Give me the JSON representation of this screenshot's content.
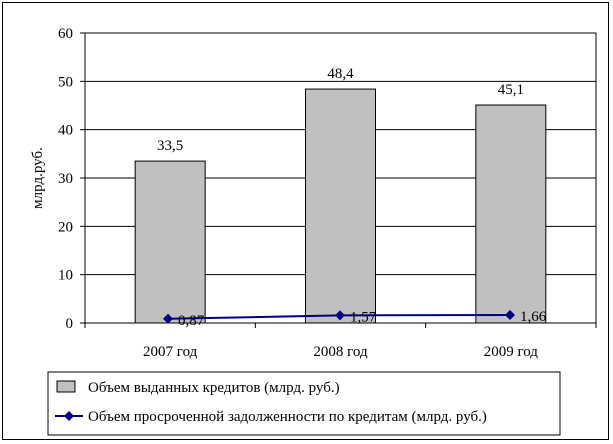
{
  "chart_data": {
    "type": "bar",
    "categories": [
      "2007 год",
      "2008 год",
      "2009 год"
    ],
    "ylabel": "млрд.руб.",
    "ylim": [
      0,
      60
    ],
    "yticks": [
      0,
      10,
      20,
      30,
      40,
      50,
      60
    ],
    "grid": true,
    "legend_position": "bottom",
    "series": [
      {
        "name": "Объем выданных кредитов (млрд. руб.)",
        "type": "bar",
        "values": [
          33.5,
          48.4,
          45.1
        ],
        "labels": [
          "33,5",
          "48,4",
          "45,1"
        ],
        "color": "#c0c0c0"
      },
      {
        "name": "Объем просроченной задолженности по кредитам (млрд. руб.)",
        "type": "line",
        "values": [
          0.87,
          1.57,
          1.66
        ],
        "labels": [
          "0,87",
          "1,57",
          "1,66"
        ],
        "color": "#000080"
      }
    ]
  }
}
